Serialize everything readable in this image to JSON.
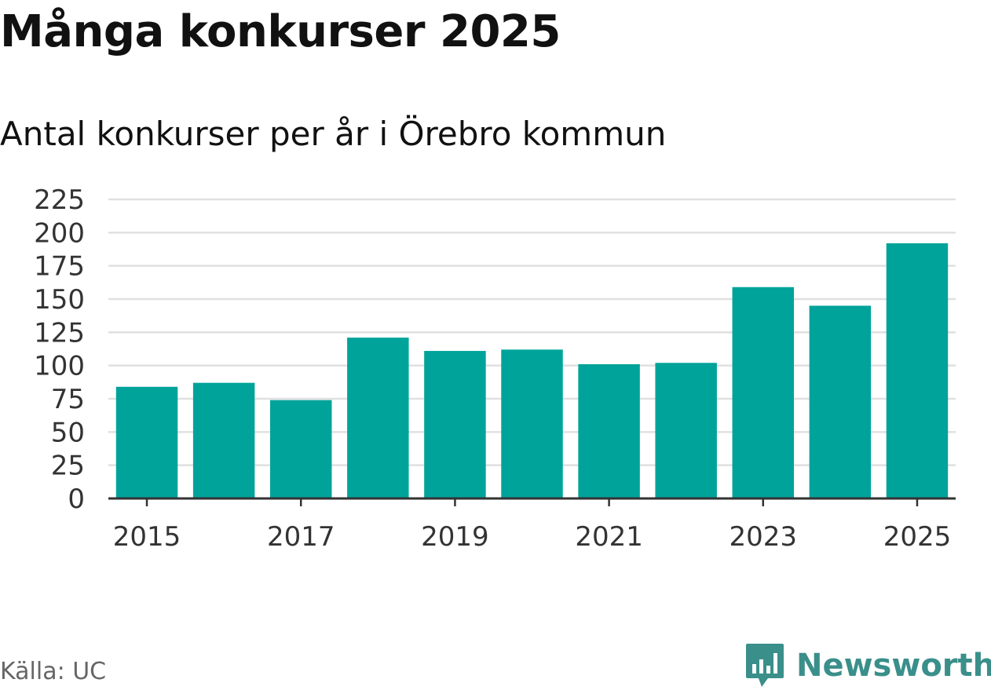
{
  "header": {
    "title": "Många konkurser 2025",
    "subtitle": "Antal konkurser per år i Örebro kommun"
  },
  "footer": {
    "source": "Källa: UC",
    "brand": "Newsworthy",
    "brand_icon": "newsworthy-logo-icon"
  },
  "colors": {
    "bar": "#00a39a",
    "grid": "#e0e0e0",
    "axis": "#333333",
    "brand": "#3a8f8a"
  },
  "chart_data": {
    "type": "bar",
    "title": "Många konkurser 2025",
    "subtitle": "Antal konkurser per år i Örebro kommun",
    "xlabel": "",
    "ylabel": "",
    "categories": [
      "2015",
      "2016",
      "2017",
      "2018",
      "2019",
      "2020",
      "2021",
      "2022",
      "2023",
      "2024",
      "2025"
    ],
    "values": [
      84,
      87,
      74,
      121,
      111,
      112,
      101,
      102,
      159,
      145,
      192
    ],
    "x_tick_labels": [
      "2015",
      "2017",
      "2019",
      "2021",
      "2023",
      "2025"
    ],
    "y_ticks": [
      0,
      25,
      50,
      75,
      100,
      125,
      150,
      175,
      200,
      225
    ],
    "ylim": [
      0,
      225
    ],
    "grid": true,
    "legend": "none"
  }
}
